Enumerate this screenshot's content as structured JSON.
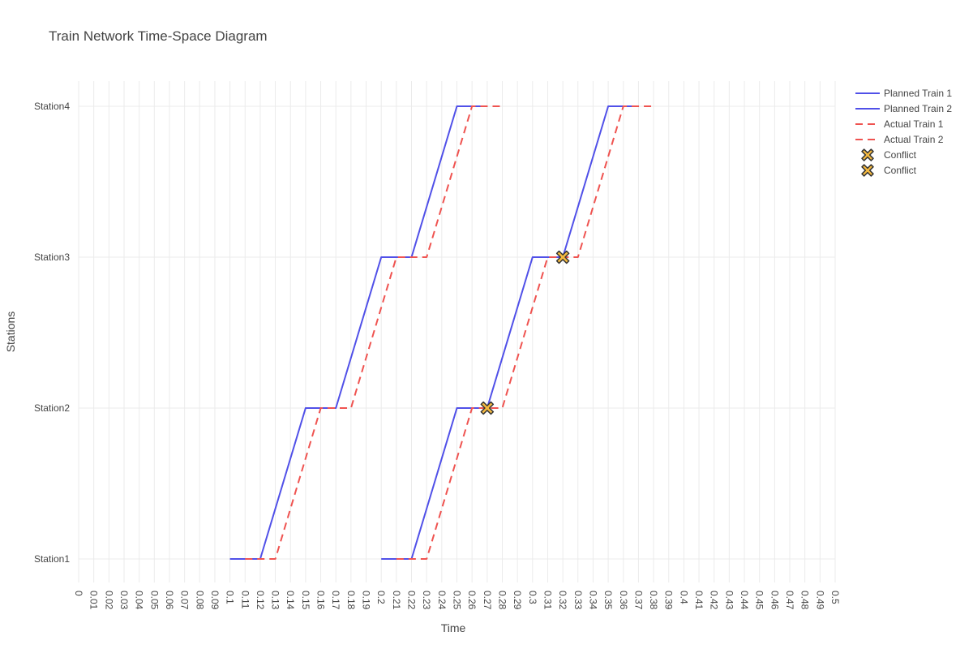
{
  "chart_data": {
    "type": "line",
    "title": "Train Network Time-Space Diagram",
    "xlabel": "Time",
    "ylabel": "Stations",
    "xlim": [
      0,
      0.5
    ],
    "x_tick_step": 0.01,
    "grid": true,
    "legend_position": "top-right",
    "stations": [
      "Station1",
      "Station2",
      "Station3",
      "Station4"
    ],
    "series": [
      {
        "name": "Planned Train 1",
        "style": "solid",
        "color": "#5050e8",
        "points": [
          {
            "x": 0.1,
            "y": "Station1"
          },
          {
            "x": 0.12,
            "y": "Station1"
          },
          {
            "x": 0.15,
            "y": "Station2"
          },
          {
            "x": 0.17,
            "y": "Station2"
          },
          {
            "x": 0.2,
            "y": "Station3"
          },
          {
            "x": 0.22,
            "y": "Station3"
          },
          {
            "x": 0.25,
            "y": "Station4"
          },
          {
            "x": 0.27,
            "y": "Station4"
          }
        ]
      },
      {
        "name": "Planned Train 2",
        "style": "solid",
        "color": "#5050e8",
        "points": [
          {
            "x": 0.2,
            "y": "Station1"
          },
          {
            "x": 0.22,
            "y": "Station1"
          },
          {
            "x": 0.25,
            "y": "Station2"
          },
          {
            "x": 0.27,
            "y": "Station2"
          },
          {
            "x": 0.3,
            "y": "Station3"
          },
          {
            "x": 0.32,
            "y": "Station3"
          },
          {
            "x": 0.35,
            "y": "Station4"
          },
          {
            "x": 0.37,
            "y": "Station4"
          }
        ]
      },
      {
        "name": "Actual Train 1",
        "style": "dash",
        "color": "#ef5350",
        "points": [
          {
            "x": 0.11,
            "y": "Station1"
          },
          {
            "x": 0.13,
            "y": "Station1"
          },
          {
            "x": 0.16,
            "y": "Station2"
          },
          {
            "x": 0.18,
            "y": "Station2"
          },
          {
            "x": 0.21,
            "y": "Station3"
          },
          {
            "x": 0.23,
            "y": "Station3"
          },
          {
            "x": 0.26,
            "y": "Station4"
          },
          {
            "x": 0.28,
            "y": "Station4"
          }
        ]
      },
      {
        "name": "Actual Train 2",
        "style": "dash",
        "color": "#ef5350",
        "points": [
          {
            "x": 0.21,
            "y": "Station1"
          },
          {
            "x": 0.23,
            "y": "Station1"
          },
          {
            "x": 0.26,
            "y": "Station2"
          },
          {
            "x": 0.28,
            "y": "Station2"
          },
          {
            "x": 0.31,
            "y": "Station3"
          },
          {
            "x": 0.33,
            "y": "Station3"
          },
          {
            "x": 0.36,
            "y": "Station4"
          },
          {
            "x": 0.38,
            "y": "Station4"
          }
        ]
      }
    ],
    "conflicts": [
      {
        "name": "Conflict",
        "x": 0.27,
        "y": "Station2"
      },
      {
        "name": "Conflict",
        "x": 0.32,
        "y": "Station3"
      }
    ],
    "conflict_fill": "#f4b940",
    "conflict_stroke": "#333333"
  }
}
